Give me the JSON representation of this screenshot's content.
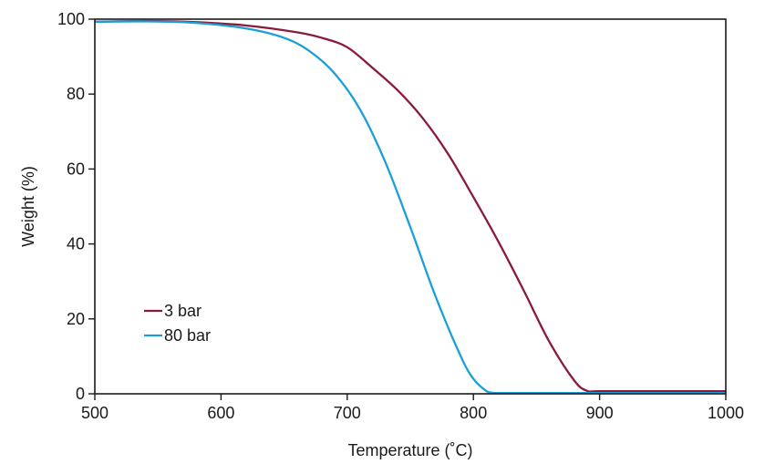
{
  "chart_data": {
    "type": "line",
    "title": "",
    "xlabel": "Temperature (˚C)",
    "ylabel": "Weight (%)",
    "xlim": [
      500,
      1000
    ],
    "ylim": [
      0,
      100
    ],
    "xticks": [
      500,
      600,
      700,
      800,
      900,
      1000
    ],
    "yticks": [
      0,
      20,
      40,
      60,
      80,
      100
    ],
    "grid": false,
    "legend_position": "lower-left",
    "series": [
      {
        "name": "3 bar",
        "color": "#8b1a3a",
        "x": [
          500,
          540,
          580,
          620,
          660,
          680,
          700,
          720,
          740,
          760,
          780,
          800,
          820,
          840,
          860,
          880,
          890,
          900,
          950,
          1000
        ],
        "y": [
          99.3,
          99.5,
          99.2,
          98.3,
          96.5,
          95.0,
          92.5,
          87.0,
          81.0,
          73.5,
          64.0,
          52.5,
          40.5,
          27.5,
          14.0,
          3.5,
          0.8,
          0.7,
          0.7,
          0.7
        ]
      },
      {
        "name": "80 bar",
        "color": "#1a9fd8",
        "x": [
          500,
          540,
          580,
          620,
          650,
          670,
          690,
          710,
          730,
          750,
          770,
          790,
          800,
          810,
          815,
          820,
          900,
          1000
        ],
        "y": [
          99.3,
          99.4,
          99.0,
          97.5,
          95.0,
          91.5,
          85.5,
          76.0,
          62.0,
          44.5,
          26.0,
          10.0,
          4.0,
          0.8,
          0.3,
          0.2,
          0.2,
          0.2
        ]
      }
    ]
  }
}
